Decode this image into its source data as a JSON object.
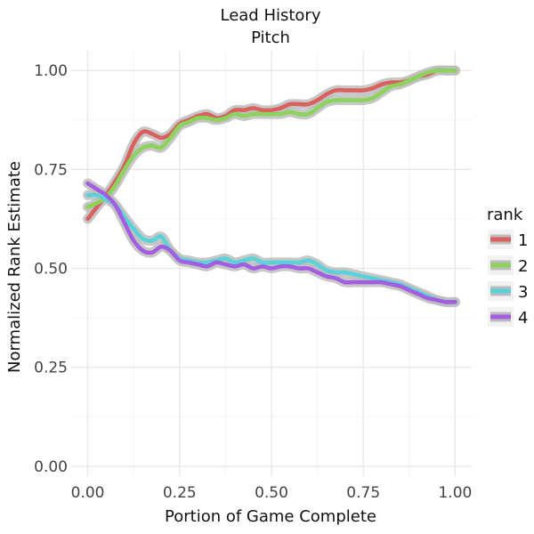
{
  "chart_data": {
    "type": "line",
    "title": "Lead History",
    "subtitle": "Pitch",
    "xlabel": "Portion of Game Complete",
    "ylabel": "Normalized Rank Estimate",
    "xlim": [
      0,
      1
    ],
    "ylim": [
      0,
      1
    ],
    "x_ticks": [
      0,
      0.25,
      0.5,
      0.75,
      1
    ],
    "x_tick_labels": [
      "0.00",
      "0.25",
      "0.50",
      "0.75",
      "1.00"
    ],
    "y_ticks": [
      0,
      0.25,
      0.5,
      0.75,
      1
    ],
    "y_tick_labels": [
      "0.00",
      "0.25",
      "0.50",
      "0.75",
      "1.00"
    ],
    "grid": true,
    "legend": {
      "title": "rank",
      "position": "right"
    },
    "confidence_band": true,
    "series": [
      {
        "name": "1",
        "color": "#d9605c",
        "x": [
          0,
          0.025,
          0.05,
          0.075,
          0.1,
          0.125,
          0.15,
          0.175,
          0.2,
          0.225,
          0.25,
          0.275,
          0.3,
          0.325,
          0.35,
          0.375,
          0.4,
          0.425,
          0.45,
          0.475,
          0.5,
          0.525,
          0.55,
          0.575,
          0.6,
          0.625,
          0.65,
          0.675,
          0.7,
          0.725,
          0.75,
          0.775,
          0.8,
          0.825,
          0.85,
          0.875,
          0.9,
          0.925,
          0.95,
          0.975,
          1
        ],
        "y": [
          0.625,
          0.655,
          0.685,
          0.72,
          0.76,
          0.815,
          0.845,
          0.84,
          0.83,
          0.84,
          0.865,
          0.875,
          0.885,
          0.89,
          0.88,
          0.885,
          0.9,
          0.9,
          0.905,
          0.9,
          0.9,
          0.905,
          0.915,
          0.915,
          0.915,
          0.925,
          0.94,
          0.95,
          0.95,
          0.95,
          0.95,
          0.955,
          0.965,
          0.97,
          0.97,
          0.975,
          0.985,
          0.99,
          1.0,
          1.0,
          1.0
        ]
      },
      {
        "name": "2",
        "color": "#8bd35b",
        "x": [
          0,
          0.025,
          0.05,
          0.075,
          0.1,
          0.125,
          0.15,
          0.175,
          0.2,
          0.225,
          0.25,
          0.275,
          0.3,
          0.325,
          0.35,
          0.375,
          0.4,
          0.425,
          0.45,
          0.475,
          0.5,
          0.525,
          0.55,
          0.575,
          0.6,
          0.625,
          0.65,
          0.675,
          0.7,
          0.725,
          0.75,
          0.775,
          0.8,
          0.825,
          0.85,
          0.875,
          0.9,
          0.925,
          0.95,
          0.975,
          1
        ],
        "y": [
          0.655,
          0.665,
          0.68,
          0.71,
          0.75,
          0.785,
          0.805,
          0.81,
          0.805,
          0.83,
          0.86,
          0.87,
          0.88,
          0.88,
          0.875,
          0.88,
          0.89,
          0.885,
          0.89,
          0.89,
          0.89,
          0.89,
          0.895,
          0.89,
          0.89,
          0.905,
          0.92,
          0.925,
          0.925,
          0.925,
          0.925,
          0.93,
          0.945,
          0.96,
          0.965,
          0.975,
          0.985,
          0.995,
          1.0,
          1.0,
          1.0
        ]
      },
      {
        "name": "3",
        "color": "#59d3d9",
        "x": [
          0,
          0.025,
          0.05,
          0.075,
          0.1,
          0.125,
          0.15,
          0.175,
          0.2,
          0.225,
          0.25,
          0.275,
          0.3,
          0.325,
          0.35,
          0.375,
          0.4,
          0.425,
          0.45,
          0.475,
          0.5,
          0.525,
          0.55,
          0.575,
          0.6,
          0.625,
          0.65,
          0.675,
          0.7,
          0.725,
          0.75,
          0.775,
          0.8,
          0.825,
          0.85,
          0.875,
          0.9,
          0.925,
          0.95,
          0.975,
          1
        ],
        "y": [
          0.685,
          0.685,
          0.675,
          0.66,
          0.63,
          0.6,
          0.575,
          0.57,
          0.58,
          0.545,
          0.525,
          0.52,
          0.515,
          0.515,
          0.52,
          0.525,
          0.515,
          0.52,
          0.525,
          0.515,
          0.515,
          0.515,
          0.515,
          0.515,
          0.52,
          0.51,
          0.495,
          0.49,
          0.49,
          0.485,
          0.48,
          0.475,
          0.47,
          0.465,
          0.46,
          0.45,
          0.44,
          0.43,
          0.42,
          0.415,
          0.415
        ]
      },
      {
        "name": "4",
        "color": "#a35ce2",
        "x": [
          0,
          0.025,
          0.05,
          0.075,
          0.1,
          0.125,
          0.15,
          0.175,
          0.2,
          0.225,
          0.25,
          0.275,
          0.3,
          0.325,
          0.35,
          0.375,
          0.4,
          0.425,
          0.45,
          0.475,
          0.5,
          0.525,
          0.55,
          0.575,
          0.6,
          0.625,
          0.65,
          0.675,
          0.7,
          0.725,
          0.75,
          0.775,
          0.8,
          0.825,
          0.85,
          0.875,
          0.9,
          0.925,
          0.95,
          0.975,
          1
        ],
        "y": [
          0.715,
          0.7,
          0.685,
          0.66,
          0.615,
          0.57,
          0.545,
          0.54,
          0.555,
          0.545,
          0.52,
          0.515,
          0.51,
          0.505,
          0.515,
          0.51,
          0.505,
          0.51,
          0.5,
          0.505,
          0.5,
          0.505,
          0.505,
          0.5,
          0.5,
          0.49,
          0.48,
          0.475,
          0.465,
          0.465,
          0.465,
          0.465,
          0.465,
          0.46,
          0.455,
          0.445,
          0.435,
          0.425,
          0.42,
          0.415,
          0.415
        ]
      }
    ]
  }
}
